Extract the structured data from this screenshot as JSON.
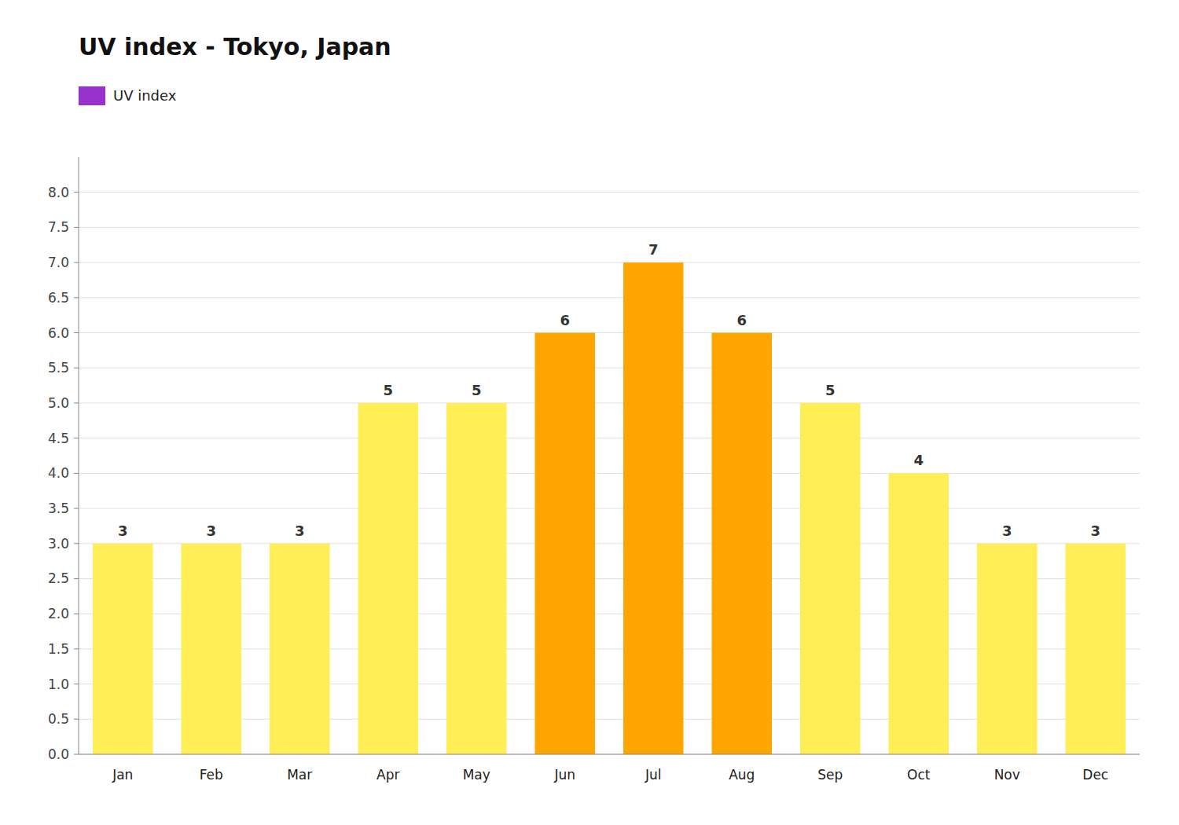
{
  "chart_data": {
    "type": "bar",
    "title": "UV index - Tokyo, Japan",
    "categories": [
      "Jan",
      "Feb",
      "Mar",
      "Apr",
      "May",
      "Jun",
      "Jul",
      "Aug",
      "Sep",
      "Oct",
      "Nov",
      "Dec"
    ],
    "series": [
      {
        "name": "UV index",
        "color": "#9932CC",
        "values": [
          3,
          3,
          3,
          5,
          5,
          6,
          7,
          6,
          5,
          4,
          3,
          3
        ],
        "colors": [
          "#FFEE55",
          "#FFEE55",
          "#FFEE55",
          "#FFEE55",
          "#FFEE55",
          "#FFA500",
          "#FFA500",
          "#FFA500",
          "#FFEE55",
          "#FFEE55",
          "#FFEE55",
          "#FFEE55"
        ]
      }
    ],
    "ylim": [
      0,
      8.5
    ],
    "yticks": [
      {
        "value": 0,
        "label": "0.0"
      },
      0.5,
      {
        "value": 1,
        "label": "1.0"
      },
      1.5,
      {
        "value": 2,
        "label": "2.0"
      },
      2.5,
      {
        "value": 3,
        "label": "3.0"
      },
      3.5,
      {
        "value": 4,
        "label": "4.0"
      },
      4.5,
      {
        "value": 5,
        "label": "5.0"
      },
      5.5,
      {
        "value": 6,
        "label": "6.0"
      },
      6.5,
      {
        "value": 7,
        "label": "7.0"
      },
      7.5,
      {
        "value": 8,
        "label": "8.0"
      }
    ],
    "grid": true,
    "legend": "upper left",
    "data_labels": true
  }
}
